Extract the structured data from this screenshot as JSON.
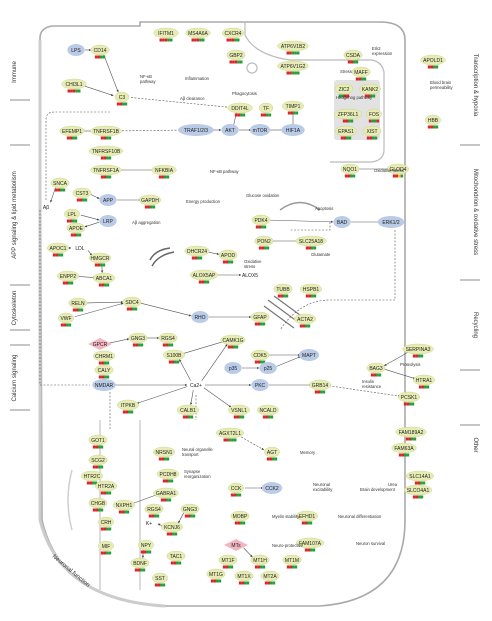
{
  "categories": {
    "left": [
      "Immune",
      "APP signaling & lipid metabolism",
      "Cytoskeleton",
      "Calcium signaling"
    ],
    "right": [
      "Transcription & hypoxia",
      "Mitochondrion & oxidative stress",
      "Recycling",
      "Other"
    ],
    "bottom": "Neuronal function"
  },
  "genes": {
    "IFITM1": "IFITM1",
    "MS4A6A": "MS4A6A",
    "CXCR4": "CXCR4",
    "GBP2": "GBP2",
    "ATP6V1B2": "ATP6V1B2",
    "ATP6V1G2": "ATP6V1G2",
    "CSDA": "CSDA",
    "MAFF": "MAFF",
    "ZIC2": "ZIC2",
    "KANK2": "KANK2",
    "ZFP36L1": "ZFP36L1",
    "FOS": "FOS",
    "EPAS1": "EPAS1",
    "XIST": "XIST",
    "APOLD1": "APOLD1",
    "HBB": "HBB",
    "LPS": "LPS",
    "CD14": "CD14",
    "CHI3L1": "CHI3L1",
    "C3": "C3",
    "DDIT4L": "DDIT4L",
    "TF": "TF",
    "TIMP1": "TIMP1",
    "EFEMP1": "EFEMP1",
    "TNFRSF1B": "TNFRSF1B",
    "TNFRSF10B": "TNFRSF10B",
    "TRAF123": "TRAF1/2/3",
    "AKT": "AKT",
    "mTOR": "mTOR",
    "HIF1A": "HIF1A",
    "TNFRSF1A": "TNFRSF1A",
    "NFKBIA": "NFKBIA",
    "SNCA": "SNCA",
    "CST3": "CST3",
    "NQO1": "NQO1",
    "GLOD4": "GLOD4",
    "Abeta": "Aβ",
    "APP": "APP",
    "GAPDH": "GAPDH",
    "LPL": "LPL",
    "APOE": "APOE",
    "LRP": "LRP",
    "PDK4": "PDK4",
    "BAD": "BAD",
    "ERK12": "ERK1/2",
    "PON2": "PON2",
    "SLC25A18": "SLC25A18",
    "APOC1": "APOC1",
    "LDL": "LDL",
    "HMGCR": "HMGCR",
    "DHCR24": "DHCR24",
    "APOD": "APOD",
    "ENPP2": "ENPP2",
    "ABCA1": "ABCA1",
    "ALOX5AP": "ALOX5AP",
    "ALOX5": "ALOX5",
    "RELN": "RELN",
    "SDC4": "SDC4",
    "TUBB": "TUBB",
    "HSPB1": "HSPB1",
    "VWF": "VWF",
    "RHO": "RHO",
    "GFAP": "GFAP",
    "ACTA2": "ACTA2",
    "SERPINA3": "SERPINA3",
    "GNG3": "GNG3",
    "RGS4": "RGS4",
    "GPCR": "GPCR",
    "CAMK1G": "CAMK1G",
    "BAG3": "BAG3",
    "HTRA1": "HTRA1",
    "CHRM1": "CHRM1",
    "S100B": "S100B",
    "CDK5": "CDK5",
    "MAPT": "MAPT",
    "CALY": "CALY",
    "p35": "p35",
    "p25": "p25",
    "NMDAR": "NMDAR",
    "Ca2": "Ca2+",
    "PKC": "PKC",
    "GRB14": "GRB14",
    "PCSK1": "PCSK1",
    "ITPKB": "ITPKB",
    "CALB1": "CALB1",
    "VSNL1": "VSNL1",
    "NCALD": "NCALD",
    "AGXT2L1": "AGXT2L1",
    "FAM189A2": "FAM189A2",
    "FAM63A": "FAM63A",
    "GOT1": "GOT1",
    "NRSN1": "NRSN1",
    "AGT": "AGT",
    "SLC14A1": "SLC14A1",
    "SCG2": "SCG2",
    "PCDH8": "PCDH8",
    "HTR2C": "HTR2C",
    "HTR2A": "HTR2A",
    "GABRA1": "GABRA1",
    "CCK": "CCK",
    "CCK2": "CCK2",
    "SLCO4A1": "SLCO4A1",
    "CHGB": "CHGB",
    "NXPH1": "NXPH1",
    "RGS4b": "RGS4",
    "GNG3b": "GNG3",
    "MOBP": "MOBP",
    "EFHD1": "EFHD1",
    "CRH": "CRH",
    "KCNJ6": "KCNJ6",
    "K": "K+",
    "MIF": "MIF",
    "NPY": "NPY",
    "MTs": "MTs",
    "FAM107A": "FAM107A",
    "BDNF": "BDNF",
    "TAC1": "TAC1",
    "MT1F": "MT1F",
    "MT1H": "MT1H",
    "MT1M": "MT1M",
    "SST": "SST",
    "MT1G": "MT1G",
    "MT1X": "MT1X",
    "MT2A": "MT2A"
  },
  "labels": {
    "erk2_expression": "Erk2\nexpression",
    "nfkb_pathway": "NF-κB\npathway",
    "inflammation": "Inflammation",
    "stress": "Stress",
    "hedgehog": "Hedgehog pathway",
    "phagocytosis": "Phagocytosis",
    "abeta_clearance": "Aβ clearance",
    "bbb": "Blood brain\npermeability",
    "nfkb_pathway2": "NF-κB pathway",
    "oxidative_stress": "Oxidative stress",
    "energy": "Energy production",
    "glucose": "Glucose oxidation",
    "apoptosis": "Apoptosis",
    "abeta_aggregation": "Aβ aggregation",
    "glutamate": "Glutamate",
    "oxidative_stress2": "Oxidative\nstress",
    "proteolysis": "Proteolysis",
    "insulin": "Insulin\nresistance",
    "neuronal_organelle": "Neural organelle\ntransport",
    "synapse": "Synapse\nreorganization",
    "memory": "Memory",
    "urea": "Urea",
    "excitability": "Neuronal\nexcitability",
    "brain_dev": "Brain development",
    "myelin": "Myelin stability",
    "neuronal_diff": "Neuronal differentiation",
    "neuroprotective": "Neuro-protective",
    "neuron_survival": "Neuron survival"
  },
  "colors": {
    "gene_fill": "#e6ecb3",
    "gene_stroke": "#c5d07a",
    "node_blue": "#b9cbe6",
    "node_pink": "#f2b6c3",
    "bar_red": "#d9262a",
    "bar_green": "#2a9d3a",
    "bar_yellow": "#e8c62e",
    "hedgehog_box": "#e2e2e2"
  }
}
